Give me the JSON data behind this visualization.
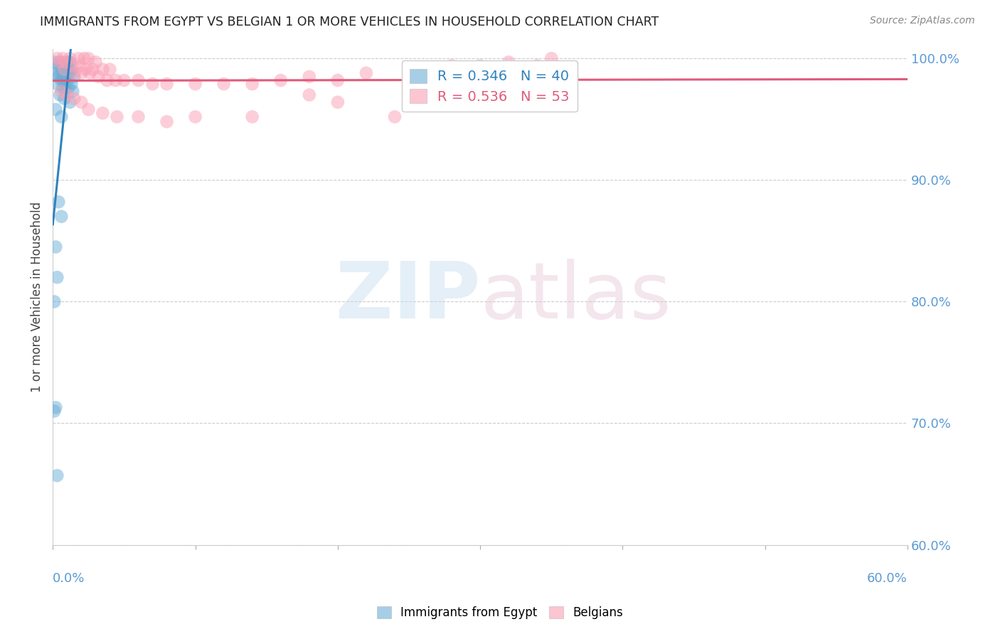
{
  "title": "IMMIGRANTS FROM EGYPT VS BELGIAN 1 OR MORE VEHICLES IN HOUSEHOLD CORRELATION CHART",
  "source": "Source: ZipAtlas.com",
  "ylabel": "1 or more Vehicles in Household",
  "legend_blue": "R = 0.346   N = 40",
  "legend_pink": "R = 0.536   N = 53",
  "legend_label_blue": "Immigrants from Egypt",
  "legend_label_pink": "Belgians",
  "blue_color": "#6baed6",
  "pink_color": "#fa9fb5",
  "trendline_blue": "#3182bd",
  "trendline_pink": "#e05a7a",
  "x_min": 0.0,
  "x_max": 0.6,
  "y_min": 0.6,
  "y_max": 1.008,
  "blue_scatter": [
    [
      0.001,
      0.997
    ],
    [
      0.005,
      0.997
    ],
    [
      0.01,
      0.997
    ],
    [
      0.012,
      0.997
    ],
    [
      0.004,
      0.994
    ],
    [
      0.006,
      0.994
    ],
    [
      0.008,
      0.991
    ],
    [
      0.009,
      0.991
    ],
    [
      0.011,
      0.991
    ],
    [
      0.013,
      0.991
    ],
    [
      0.003,
      0.988
    ],
    [
      0.005,
      0.988
    ],
    [
      0.007,
      0.988
    ],
    [
      0.008,
      0.988
    ],
    [
      0.01,
      0.988
    ],
    [
      0.012,
      0.988
    ],
    [
      0.015,
      0.985
    ],
    [
      0.004,
      0.985
    ],
    [
      0.006,
      0.982
    ],
    [
      0.008,
      0.982
    ],
    [
      0.01,
      0.982
    ],
    [
      0.013,
      0.979
    ],
    [
      0.003,
      0.979
    ],
    [
      0.007,
      0.976
    ],
    [
      0.009,
      0.976
    ],
    [
      0.011,
      0.976
    ],
    [
      0.014,
      0.973
    ],
    [
      0.005,
      0.97
    ],
    [
      0.008,
      0.967
    ],
    [
      0.012,
      0.964
    ],
    [
      0.002,
      0.958
    ],
    [
      0.006,
      0.952
    ],
    [
      0.004,
      0.882
    ],
    [
      0.006,
      0.87
    ],
    [
      0.002,
      0.845
    ],
    [
      0.003,
      0.82
    ],
    [
      0.001,
      0.8
    ],
    [
      0.002,
      0.713
    ],
    [
      0.001,
      0.71
    ],
    [
      0.003,
      0.657
    ]
  ],
  "pink_scatter": [
    [
      0.003,
      1.0
    ],
    [
      0.007,
      1.0
    ],
    [
      0.012,
      1.0
    ],
    [
      0.018,
      1.0
    ],
    [
      0.022,
      1.0
    ],
    [
      0.025,
      1.0
    ],
    [
      0.03,
      0.997
    ],
    [
      0.005,
      0.997
    ],
    [
      0.009,
      0.997
    ],
    [
      0.014,
      0.994
    ],
    [
      0.019,
      0.994
    ],
    [
      0.023,
      0.991
    ],
    [
      0.028,
      0.991
    ],
    [
      0.035,
      0.991
    ],
    [
      0.04,
      0.991
    ],
    [
      0.008,
      0.991
    ],
    [
      0.015,
      0.988
    ],
    [
      0.02,
      0.988
    ],
    [
      0.026,
      0.988
    ],
    [
      0.032,
      0.985
    ],
    [
      0.038,
      0.982
    ],
    [
      0.044,
      0.982
    ],
    [
      0.05,
      0.982
    ],
    [
      0.06,
      0.982
    ],
    [
      0.07,
      0.979
    ],
    [
      0.08,
      0.979
    ],
    [
      0.1,
      0.979
    ],
    [
      0.12,
      0.979
    ],
    [
      0.14,
      0.979
    ],
    [
      0.16,
      0.982
    ],
    [
      0.18,
      0.985
    ],
    [
      0.2,
      0.982
    ],
    [
      0.22,
      0.988
    ],
    [
      0.25,
      0.991
    ],
    [
      0.28,
      0.994
    ],
    [
      0.3,
      0.994
    ],
    [
      0.32,
      0.997
    ],
    [
      0.35,
      1.0
    ],
    [
      0.006,
      0.973
    ],
    [
      0.01,
      0.97
    ],
    [
      0.015,
      0.967
    ],
    [
      0.02,
      0.964
    ],
    [
      0.025,
      0.958
    ],
    [
      0.035,
      0.955
    ],
    [
      0.045,
      0.952
    ],
    [
      0.06,
      0.952
    ],
    [
      0.08,
      0.948
    ],
    [
      0.1,
      0.952
    ],
    [
      0.14,
      0.952
    ],
    [
      0.18,
      0.97
    ],
    [
      0.2,
      0.964
    ],
    [
      0.24,
      0.952
    ],
    [
      0.34,
      0.994
    ]
  ]
}
